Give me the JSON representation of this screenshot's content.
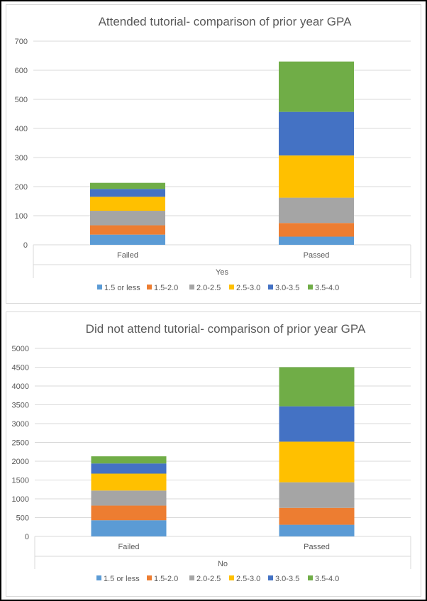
{
  "chart_data": [
    {
      "type": "bar",
      "stacked": true,
      "title": "Attended tutorial- comparison of prior year GPA",
      "categories": [
        "Failed",
        "Passed"
      ],
      "group_label": "Yes",
      "ylim": [
        0,
        700
      ],
      "yticks": [
        "0",
        "100",
        "200",
        "300",
        "400",
        "500",
        "600",
        "700"
      ],
      "grid": true,
      "legend_position": "bottom",
      "series": [
        {
          "name": "1.5 or less",
          "color": "#5b9bd5",
          "values": [
            35,
            28
          ]
        },
        {
          "name": "1.5-2.0",
          "color": "#ed7d31",
          "values": [
            32,
            47
          ]
        },
        {
          "name": "2.0-2.5",
          "color": "#a5a5a5",
          "values": [
            50,
            87
          ]
        },
        {
          "name": "2.5-3.0",
          "color": "#ffc000",
          "values": [
            48,
            145
          ]
        },
        {
          "name": "3.0-3.5",
          "color": "#4472c4",
          "values": [
            27,
            150
          ]
        },
        {
          "name": "3.5-4.0",
          "color": "#70ad47",
          "values": [
            21,
            173
          ]
        }
      ]
    },
    {
      "type": "bar",
      "stacked": true,
      "title": "Did not attend tutorial- comparison of prior year GPA",
      "categories": [
        "Failed",
        "Passed"
      ],
      "group_label": "No",
      "ylim": [
        0,
        5000
      ],
      "yticks": [
        "0",
        "500",
        "1000",
        "1500",
        "2000",
        "2500",
        "3000",
        "3500",
        "4000",
        "4500",
        "5000"
      ],
      "grid": true,
      "legend_position": "bottom",
      "series": [
        {
          "name": "1.5 or less",
          "color": "#5b9bd5",
          "values": [
            430,
            310
          ]
        },
        {
          "name": "1.5-2.0",
          "color": "#ed7d31",
          "values": [
            390,
            450
          ]
        },
        {
          "name": "2.0-2.5",
          "color": "#a5a5a5",
          "values": [
            400,
            680
          ]
        },
        {
          "name": "2.5-3.0",
          "color": "#ffc000",
          "values": [
            450,
            1080
          ]
        },
        {
          "name": "3.0-3.5",
          "color": "#4472c4",
          "values": [
            270,
            940
          ]
        },
        {
          "name": "3.5-4.0",
          "color": "#70ad47",
          "values": [
            190,
            1040
          ]
        }
      ]
    }
  ]
}
